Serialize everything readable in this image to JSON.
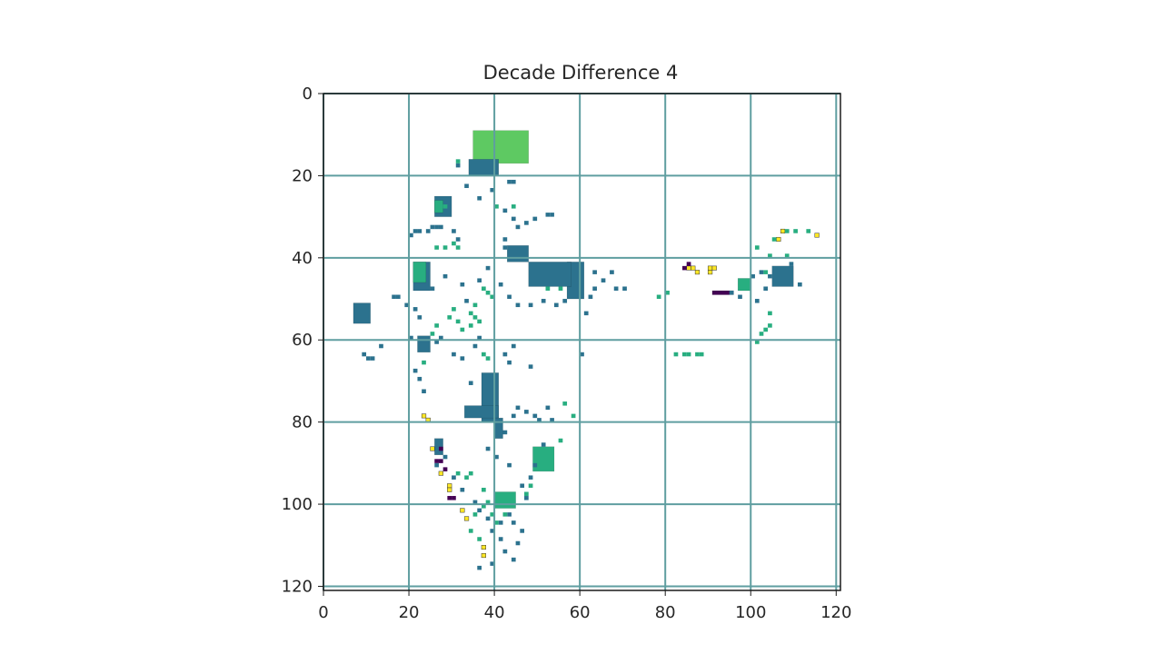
{
  "chart_data": {
    "type": "heatmap",
    "title": "Decade Difference 4",
    "xlim": [
      0,
      121
    ],
    "ylim": [
      121,
      0
    ],
    "grid": true,
    "x_ticks": [
      "0",
      "20",
      "40",
      "60",
      "80",
      "100",
      "120"
    ],
    "y_ticks": [
      "0",
      "20",
      "40",
      "60",
      "80",
      "100",
      "120"
    ],
    "x_tick_values": [
      0,
      20,
      40,
      60,
      80,
      100,
      120
    ],
    "y_tick_values": [
      0,
      20,
      40,
      60,
      80,
      100,
      120
    ],
    "colors": {
      "level_1": "#440154",
      "level_2": "#2c728e",
      "level_3": "#28ae80",
      "level_4": "#5ec962",
      "level_5": "#fde725",
      "grid": "#5f9ea0",
      "frame": "#1a1a1a"
    },
    "regions": [
      {
        "level": 4,
        "x": [
          35,
          48
        ],
        "y": [
          9,
          17
        ]
      },
      {
        "level": 2,
        "x": [
          34,
          41
        ],
        "y": [
          16,
          20
        ]
      },
      {
        "level": 2,
        "x": [
          57,
          61
        ],
        "y": [
          41,
          50
        ]
      },
      {
        "level": 2,
        "x": [
          48,
          58
        ],
        "y": [
          41,
          47
        ]
      },
      {
        "level": 2,
        "x": [
          43,
          48
        ],
        "y": [
          37,
          41
        ]
      },
      {
        "level": 2,
        "x": [
          21,
          25
        ],
        "y": [
          41,
          48
        ]
      },
      {
        "level": 3,
        "x": [
          21,
          24
        ],
        "y": [
          41,
          46
        ]
      },
      {
        "level": 2,
        "x": [
          7,
          11
        ],
        "y": [
          51,
          56
        ]
      },
      {
        "level": 2,
        "x": [
          22,
          25
        ],
        "y": [
          59,
          63
        ]
      },
      {
        "level": 2,
        "x": [
          37,
          41
        ],
        "y": [
          68,
          80
        ]
      },
      {
        "level": 2,
        "x": [
          33,
          41
        ],
        "y": [
          76,
          79
        ]
      },
      {
        "level": 2,
        "x": [
          40,
          42
        ],
        "y": [
          79,
          84
        ]
      },
      {
        "level": 3,
        "x": [
          97,
          100
        ],
        "y": [
          45,
          48
        ]
      },
      {
        "level": 2,
        "x": [
          26,
          30
        ],
        "y": [
          25,
          30
        ]
      },
      {
        "level": 3,
        "x": [
          26,
          28
        ],
        "y": [
          26,
          29
        ]
      },
      {
        "level": 2,
        "x": [
          105,
          110
        ],
        "y": [
          42,
          47
        ]
      },
      {
        "level": 1,
        "x": [
          91,
          96
        ],
        "y": [
          48,
          49
        ]
      },
      {
        "level": 3,
        "x": [
          49,
          54
        ],
        "y": [
          86,
          92
        ]
      },
      {
        "level": 3,
        "x": [
          40,
          45
        ],
        "y": [
          97,
          101
        ]
      },
      {
        "level": 2,
        "x": [
          26,
          28
        ],
        "y": [
          84,
          88
        ]
      }
    ],
    "cells": [
      {
        "level": 5,
        "x": 86,
        "y": 42
      },
      {
        "level": 5,
        "x": 87,
        "y": 43
      },
      {
        "level": 5,
        "x": 90,
        "y": 42
      },
      {
        "level": 5,
        "x": 90,
        "y": 43
      },
      {
        "level": 5,
        "x": 91,
        "y": 42
      },
      {
        "level": 5,
        "x": 85,
        "y": 42
      },
      {
        "level": 5,
        "x": 106,
        "y": 35
      },
      {
        "level": 5,
        "x": 107,
        "y": 33
      },
      {
        "level": 5,
        "x": 115,
        "y": 34
      },
      {
        "level": 5,
        "x": 23,
        "y": 78
      },
      {
        "level": 5,
        "x": 24,
        "y": 79
      },
      {
        "level": 5,
        "x": 25,
        "y": 86
      },
      {
        "level": 5,
        "x": 29,
        "y": 95
      },
      {
        "level": 5,
        "x": 29,
        "y": 96
      },
      {
        "level": 5,
        "x": 32,
        "y": 101
      },
      {
        "level": 5,
        "x": 33,
        "y": 103
      },
      {
        "level": 5,
        "x": 37,
        "y": 110
      },
      {
        "level": 5,
        "x": 37,
        "y": 112
      },
      {
        "level": 5,
        "x": 27,
        "y": 92
      },
      {
        "level": 1,
        "x": 84,
        "y": 42
      },
      {
        "level": 1,
        "x": 85,
        "y": 41
      },
      {
        "level": 1,
        "x": 27,
        "y": 86
      },
      {
        "level": 1,
        "x": 26,
        "y": 89
      },
      {
        "level": 1,
        "x": 27,
        "y": 89
      },
      {
        "level": 1,
        "x": 28,
        "y": 91
      },
      {
        "level": 1,
        "x": 29,
        "y": 98
      },
      {
        "level": 1,
        "x": 30,
        "y": 98
      },
      {
        "level": 2,
        "x": 31,
        "y": 17
      },
      {
        "level": 2,
        "x": 33,
        "y": 22
      },
      {
        "level": 2,
        "x": 36,
        "y": 25
      },
      {
        "level": 2,
        "x": 39,
        "y": 23
      },
      {
        "level": 2,
        "x": 43,
        "y": 21
      },
      {
        "level": 2,
        "x": 44,
        "y": 21
      },
      {
        "level": 2,
        "x": 42,
        "y": 28
      },
      {
        "level": 2,
        "x": 44,
        "y": 30
      },
      {
        "level": 2,
        "x": 47,
        "y": 31
      },
      {
        "level": 2,
        "x": 49,
        "y": 30
      },
      {
        "level": 2,
        "x": 52,
        "y": 29
      },
      {
        "level": 2,
        "x": 53,
        "y": 29
      },
      {
        "level": 2,
        "x": 20,
        "y": 34
      },
      {
        "level": 2,
        "x": 21,
        "y": 33
      },
      {
        "level": 2,
        "x": 22,
        "y": 33
      },
      {
        "level": 2,
        "x": 24,
        "y": 33
      },
      {
        "level": 2,
        "x": 25,
        "y": 32
      },
      {
        "level": 2,
        "x": 26,
        "y": 32
      },
      {
        "level": 2,
        "x": 27,
        "y": 32
      },
      {
        "level": 2,
        "x": 30,
        "y": 33
      },
      {
        "level": 2,
        "x": 31,
        "y": 35
      },
      {
        "level": 2,
        "x": 42,
        "y": 35
      },
      {
        "level": 2,
        "x": 42,
        "y": 37
      },
      {
        "level": 2,
        "x": 45,
        "y": 32
      },
      {
        "level": 2,
        "x": 17,
        "y": 49
      },
      {
        "level": 2,
        "x": 16,
        "y": 49
      },
      {
        "level": 2,
        "x": 19,
        "y": 51
      },
      {
        "level": 2,
        "x": 21,
        "y": 52
      },
      {
        "level": 2,
        "x": 22,
        "y": 54
      },
      {
        "level": 2,
        "x": 20,
        "y": 59
      },
      {
        "level": 2,
        "x": 13,
        "y": 61
      },
      {
        "level": 2,
        "x": 9,
        "y": 63
      },
      {
        "level": 2,
        "x": 10,
        "y": 64
      },
      {
        "level": 2,
        "x": 11,
        "y": 64
      },
      {
        "level": 2,
        "x": 21,
        "y": 67
      },
      {
        "level": 2,
        "x": 22,
        "y": 69
      },
      {
        "level": 2,
        "x": 23,
        "y": 72
      },
      {
        "level": 2,
        "x": 26,
        "y": 60
      },
      {
        "level": 2,
        "x": 27,
        "y": 59
      },
      {
        "level": 2,
        "x": 30,
        "y": 63
      },
      {
        "level": 2,
        "x": 32,
        "y": 64
      },
      {
        "level": 2,
        "x": 35,
        "y": 61
      },
      {
        "level": 2,
        "x": 36,
        "y": 59
      },
      {
        "level": 2,
        "x": 42,
        "y": 63
      },
      {
        "level": 2,
        "x": 43,
        "y": 65
      },
      {
        "level": 2,
        "x": 44,
        "y": 61
      },
      {
        "level": 2,
        "x": 48,
        "y": 66
      },
      {
        "level": 2,
        "x": 47,
        "y": 77
      },
      {
        "level": 2,
        "x": 49,
        "y": 78
      },
      {
        "level": 2,
        "x": 50,
        "y": 79
      },
      {
        "level": 2,
        "x": 52,
        "y": 76
      },
      {
        "level": 2,
        "x": 53,
        "y": 79
      },
      {
        "level": 2,
        "x": 45,
        "y": 76
      },
      {
        "level": 2,
        "x": 44,
        "y": 78
      },
      {
        "level": 2,
        "x": 34,
        "y": 70
      },
      {
        "level": 2,
        "x": 42,
        "y": 82
      },
      {
        "level": 2,
        "x": 60,
        "y": 63
      },
      {
        "level": 2,
        "x": 63,
        "y": 43
      },
      {
        "level": 2,
        "x": 63,
        "y": 47
      },
      {
        "level": 2,
        "x": 65,
        "y": 45
      },
      {
        "level": 2,
        "x": 67,
        "y": 43
      },
      {
        "level": 2,
        "x": 68,
        "y": 47
      },
      {
        "level": 2,
        "x": 70,
        "y": 47
      },
      {
        "level": 2,
        "x": 62,
        "y": 49
      },
      {
        "level": 2,
        "x": 61,
        "y": 53
      },
      {
        "level": 2,
        "x": 41,
        "y": 46
      },
      {
        "level": 2,
        "x": 43,
        "y": 49
      },
      {
        "level": 2,
        "x": 45,
        "y": 51
      },
      {
        "level": 2,
        "x": 48,
        "y": 51
      },
      {
        "level": 2,
        "x": 51,
        "y": 50
      },
      {
        "level": 2,
        "x": 54,
        "y": 51
      },
      {
        "level": 2,
        "x": 56,
        "y": 50
      },
      {
        "level": 2,
        "x": 38,
        "y": 42
      },
      {
        "level": 2,
        "x": 36,
        "y": 45
      },
      {
        "level": 2,
        "x": 25,
        "y": 47
      },
      {
        "level": 2,
        "x": 28,
        "y": 44
      },
      {
        "level": 2,
        "x": 32,
        "y": 46
      },
      {
        "level": 2,
        "x": 33,
        "y": 50
      },
      {
        "level": 2,
        "x": 100,
        "y": 44
      },
      {
        "level": 2,
        "x": 102,
        "y": 43
      },
      {
        "level": 2,
        "x": 103,
        "y": 47
      },
      {
        "level": 2,
        "x": 104,
        "y": 44
      },
      {
        "level": 2,
        "x": 111,
        "y": 46
      },
      {
        "level": 2,
        "x": 109,
        "y": 41
      },
      {
        "level": 2,
        "x": 101,
        "y": 50
      },
      {
        "level": 2,
        "x": 97,
        "y": 49
      },
      {
        "level": 2,
        "x": 95,
        "y": 48
      },
      {
        "level": 2,
        "x": 26,
        "y": 90
      },
      {
        "level": 2,
        "x": 28,
        "y": 88
      },
      {
        "level": 2,
        "x": 30,
        "y": 93
      },
      {
        "level": 2,
        "x": 32,
        "y": 96
      },
      {
        "level": 2,
        "x": 35,
        "y": 99
      },
      {
        "level": 2,
        "x": 36,
        "y": 101
      },
      {
        "level": 2,
        "x": 38,
        "y": 103
      },
      {
        "level": 2,
        "x": 39,
        "y": 106
      },
      {
        "level": 2,
        "x": 41,
        "y": 108
      },
      {
        "level": 2,
        "x": 42,
        "y": 111
      },
      {
        "level": 2,
        "x": 44,
        "y": 113
      },
      {
        "level": 2,
        "x": 39,
        "y": 114
      },
      {
        "level": 2,
        "x": 36,
        "y": 115
      },
      {
        "level": 2,
        "x": 41,
        "y": 104
      },
      {
        "level": 2,
        "x": 44,
        "y": 104
      },
      {
        "level": 2,
        "x": 46,
        "y": 106
      },
      {
        "level": 2,
        "x": 45,
        "y": 109
      },
      {
        "level": 2,
        "x": 43,
        "y": 102
      },
      {
        "level": 2,
        "x": 47,
        "y": 98
      },
      {
        "level": 2,
        "x": 46,
        "y": 95
      },
      {
        "level": 2,
        "x": 48,
        "y": 93
      },
      {
        "level": 2,
        "x": 49,
        "y": 90
      },
      {
        "level": 2,
        "x": 51,
        "y": 85
      },
      {
        "level": 2,
        "x": 38,
        "y": 86
      },
      {
        "level": 2,
        "x": 40,
        "y": 88
      },
      {
        "level": 2,
        "x": 43,
        "y": 90
      },
      {
        "level": 3,
        "x": 31,
        "y": 16
      },
      {
        "level": 3,
        "x": 40,
        "y": 27
      },
      {
        "level": 3,
        "x": 44,
        "y": 27
      },
      {
        "level": 3,
        "x": 28,
        "y": 27
      },
      {
        "level": 3,
        "x": 30,
        "y": 36
      },
      {
        "level": 3,
        "x": 28,
        "y": 37
      },
      {
        "level": 3,
        "x": 26,
        "y": 37
      },
      {
        "level": 3,
        "x": 31,
        "y": 37
      },
      {
        "level": 3,
        "x": 37,
        "y": 47
      },
      {
        "level": 3,
        "x": 38,
        "y": 48
      },
      {
        "level": 3,
        "x": 39,
        "y": 49
      },
      {
        "level": 3,
        "x": 35,
        "y": 51
      },
      {
        "level": 3,
        "x": 34,
        "y": 53
      },
      {
        "level": 3,
        "x": 34,
        "y": 56
      },
      {
        "level": 3,
        "x": 35,
        "y": 54
      },
      {
        "level": 3,
        "x": 32,
        "y": 57
      },
      {
        "level": 3,
        "x": 31,
        "y": 55
      },
      {
        "level": 3,
        "x": 30,
        "y": 52
      },
      {
        "level": 3,
        "x": 29,
        "y": 54
      },
      {
        "level": 3,
        "x": 26,
        "y": 56
      },
      {
        "level": 3,
        "x": 25,
        "y": 58
      },
      {
        "level": 3,
        "x": 23,
        "y": 65
      },
      {
        "level": 3,
        "x": 37,
        "y": 63
      },
      {
        "level": 3,
        "x": 38,
        "y": 64
      },
      {
        "level": 3,
        "x": 36,
        "y": 55
      },
      {
        "level": 3,
        "x": 55,
        "y": 47
      },
      {
        "level": 3,
        "x": 52,
        "y": 47
      },
      {
        "level": 3,
        "x": 58,
        "y": 78
      },
      {
        "level": 3,
        "x": 56,
        "y": 75
      },
      {
        "level": 3,
        "x": 55,
        "y": 84
      },
      {
        "level": 3,
        "x": 53,
        "y": 88
      },
      {
        "level": 3,
        "x": 52,
        "y": 90
      },
      {
        "level": 3,
        "x": 48,
        "y": 95
      },
      {
        "level": 3,
        "x": 47,
        "y": 97
      },
      {
        "level": 3,
        "x": 44,
        "y": 99
      },
      {
        "level": 3,
        "x": 42,
        "y": 102
      },
      {
        "level": 3,
        "x": 40,
        "y": 104
      },
      {
        "level": 3,
        "x": 39,
        "y": 102
      },
      {
        "level": 3,
        "x": 37,
        "y": 100
      },
      {
        "level": 3,
        "x": 35,
        "y": 102
      },
      {
        "level": 3,
        "x": 34,
        "y": 106
      },
      {
        "level": 3,
        "x": 36,
        "y": 108
      },
      {
        "level": 3,
        "x": 38,
        "y": 99
      },
      {
        "level": 3,
        "x": 33,
        "y": 93
      },
      {
        "level": 3,
        "x": 34,
        "y": 92
      },
      {
        "level": 3,
        "x": 31,
        "y": 92
      },
      {
        "level": 3,
        "x": 37,
        "y": 96
      },
      {
        "level": 3,
        "x": 85,
        "y": 63
      },
      {
        "level": 3,
        "x": 87,
        "y": 63
      },
      {
        "level": 3,
        "x": 88,
        "y": 63
      },
      {
        "level": 3,
        "x": 82,
        "y": 63
      },
      {
        "level": 3,
        "x": 84,
        "y": 63
      },
      {
        "level": 3,
        "x": 80,
        "y": 48
      },
      {
        "level": 3,
        "x": 78,
        "y": 49
      },
      {
        "level": 3,
        "x": 101,
        "y": 37
      },
      {
        "level": 3,
        "x": 103,
        "y": 43
      },
      {
        "level": 3,
        "x": 104,
        "y": 56
      },
      {
        "level": 3,
        "x": 103,
        "y": 57
      },
      {
        "level": 3,
        "x": 102,
        "y": 58
      },
      {
        "level": 3,
        "x": 104,
        "y": 53
      },
      {
        "level": 3,
        "x": 101,
        "y": 60
      },
      {
        "level": 3,
        "x": 105,
        "y": 35
      },
      {
        "level": 3,
        "x": 108,
        "y": 33
      },
      {
        "level": 3,
        "x": 110,
        "y": 33
      },
      {
        "level": 3,
        "x": 113,
        "y": 33
      },
      {
        "level": 3,
        "x": 104,
        "y": 39
      },
      {
        "level": 3,
        "x": 108,
        "y": 39
      }
    ]
  }
}
